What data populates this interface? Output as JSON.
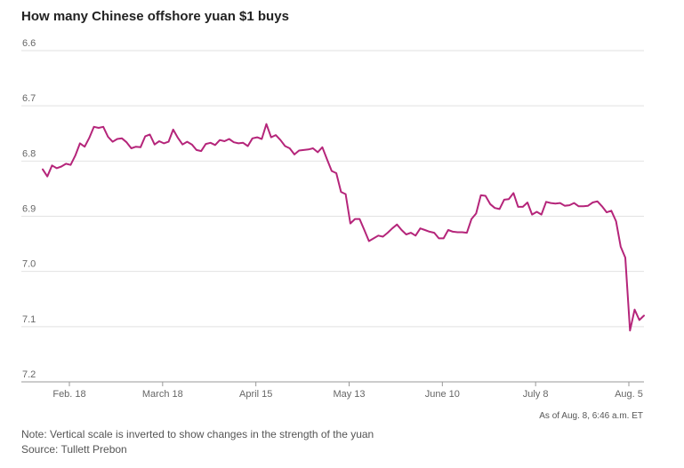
{
  "chart_data": {
    "type": "line",
    "title": "How many Chinese offshore yuan $1 buys",
    "yaxis": {
      "inverted": true,
      "ylim": [
        6.6,
        7.2
      ],
      "ticks": [
        "6.6",
        "6.7",
        "6.8",
        "6.9",
        "7.0",
        "7.1",
        "7.2"
      ]
    },
    "xaxis": {
      "ticks": [
        {
          "label": "Feb. 18",
          "day": 49
        },
        {
          "label": "March 18",
          "day": 77
        },
        {
          "label": "April 15",
          "day": 105
        },
        {
          "label": "May 13",
          "day": 133
        },
        {
          "label": "June 10",
          "day": 161
        },
        {
          "label": "July 8",
          "day": 189
        },
        {
          "label": "Aug. 5",
          "day": 217
        }
      ]
    },
    "grid": true,
    "line_color": "#b5257a",
    "values": [
      6.815,
      6.828,
      6.808,
      6.813,
      6.81,
      6.805,
      6.807,
      6.79,
      6.768,
      6.774,
      6.758,
      6.738,
      6.74,
      6.738,
      6.756,
      6.765,
      6.76,
      6.759,
      6.766,
      6.777,
      6.774,
      6.775,
      6.755,
      6.752,
      6.77,
      6.764,
      6.768,
      6.765,
      6.743,
      6.758,
      6.77,
      6.765,
      6.77,
      6.78,
      6.782,
      6.769,
      6.767,
      6.771,
      6.762,
      6.764,
      6.76,
      6.766,
      6.768,
      6.767,
      6.773,
      6.759,
      6.757,
      6.76,
      6.733,
      6.757,
      6.753,
      6.762,
      6.773,
      6.777,
      6.788,
      6.781,
      6.78,
      6.779,
      6.777,
      6.784,
      6.775,
      6.797,
      6.818,
      6.822,
      6.856,
      6.86,
      6.913,
      6.905,
      6.905,
      6.925,
      6.945,
      6.94,
      6.935,
      6.937,
      6.93,
      6.922,
      6.915,
      6.925,
      6.933,
      6.93,
      6.935,
      6.922,
      6.925,
      6.928,
      6.93,
      6.94,
      6.94,
      6.925,
      6.928,
      6.929,
      6.929,
      6.93,
      6.905,
      6.895,
      6.862,
      6.863,
      6.878,
      6.885,
      6.887,
      6.87,
      6.869,
      6.858,
      6.883,
      6.883,
      6.875,
      6.897,
      6.892,
      6.897,
      6.874,
      6.876,
      6.877,
      6.876,
      6.881,
      6.88,
      6.876,
      6.882,
      6.882,
      6.881,
      6.875,
      6.873,
      6.882,
      6.893,
      6.89,
      6.909,
      6.955,
      6.975,
      7.107,
      7.069,
      7.088,
      7.08
    ]
  },
  "footer": {
    "as_of": "As of Aug. 8, 6:46 a.m. ET",
    "note": "Note: Vertical scale is inverted to show changes in the strength of the yuan",
    "source": "Source: Tullett Prebon"
  }
}
